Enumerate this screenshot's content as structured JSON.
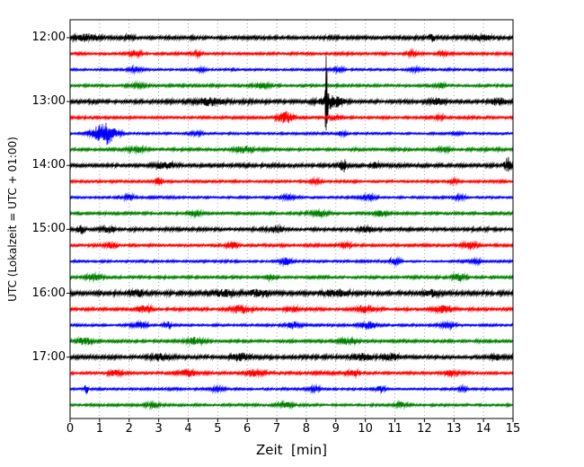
{
  "chart_data": {
    "type": "line",
    "subtype": "seismogram-helicorder-dayplot",
    "title": "",
    "xlabel": "Zeit  [min]",
    "ylabel": "UTC (Lokalzeit = UTC + 01:00)",
    "xlim": [
      0,
      15
    ],
    "minutes_per_line": 15,
    "grid": "vertical-dotted",
    "legend": "none",
    "x_tick_labels": [
      "0",
      "1",
      "2",
      "3",
      "4",
      "5",
      "6",
      "7",
      "8",
      "9",
      "10",
      "11",
      "12",
      "13",
      "14",
      "15"
    ],
    "y_tick_labels": [
      "12:00",
      "13:00",
      "14:00",
      "15:00",
      "16:00",
      "17:00"
    ],
    "trace_color_cycle": [
      "#000000",
      "#ff0000",
      "#0000ff",
      "#008000"
    ],
    "notable_event": {
      "row_utc": "13:00",
      "t_min": 8.7,
      "description": "large amplitude spike extending across neighbouring traces"
    },
    "rows": [
      {
        "utc": "12:00",
        "label": "12:00",
        "color": "#000000",
        "noise": 1.8,
        "events": [
          {
            "t": 0.55,
            "w": 0.35,
            "a": 3
          },
          {
            "t": 2.0,
            "w": 0.2,
            "a": 2
          },
          {
            "t": 12.25,
            "w": 0.08,
            "a": 4
          },
          {
            "t": 13.9,
            "w": 0.3,
            "a": 2.5
          }
        ]
      },
      {
        "utc": "12:15",
        "label": "",
        "color": "#ff0000",
        "noise": 1.4,
        "events": [
          {
            "t": 2.2,
            "w": 0.25,
            "a": 2.5
          },
          {
            "t": 4.3,
            "w": 0.15,
            "a": 2
          },
          {
            "t": 11.6,
            "w": 0.2,
            "a": 2.5
          },
          {
            "t": 12.6,
            "w": 0.15,
            "a": 2
          }
        ]
      },
      {
        "utc": "12:30",
        "label": "",
        "color": "#0000ff",
        "noise": 1.2,
        "events": [
          {
            "t": 2.2,
            "w": 0.2,
            "a": 2.5
          },
          {
            "t": 4.5,
            "w": 0.15,
            "a": 2
          },
          {
            "t": 9.1,
            "w": 0.2,
            "a": 2
          },
          {
            "t": 11.7,
            "w": 0.15,
            "a": 2
          }
        ]
      },
      {
        "utc": "12:45",
        "label": "",
        "color": "#008000",
        "noise": 1.4,
        "events": [
          {
            "t": 2.3,
            "w": 0.2,
            "a": 2
          },
          {
            "t": 6.5,
            "w": 0.3,
            "a": 2
          },
          {
            "t": 12.6,
            "w": 0.2,
            "a": 2
          }
        ]
      },
      {
        "utc": "13:00",
        "label": "13:00",
        "color": "#000000",
        "noise": 1.9,
        "events": [
          {
            "t": 4.8,
            "w": 0.4,
            "a": 3.5
          },
          {
            "t": 8.68,
            "w": 0.045,
            "a": 58
          },
          {
            "t": 8.85,
            "w": 0.35,
            "a": 7
          },
          {
            "t": 12.4,
            "w": 0.3,
            "a": 2.5
          },
          {
            "t": 14.5,
            "w": 0.25,
            "a": 3
          }
        ]
      },
      {
        "utc": "13:15",
        "label": "",
        "color": "#ff0000",
        "noise": 1.4,
        "events": [
          {
            "t": 7.3,
            "w": 0.28,
            "a": 6
          },
          {
            "t": 9.0,
            "w": 0.2,
            "a": 2
          },
          {
            "t": 12.5,
            "w": 0.15,
            "a": 2.5
          }
        ]
      },
      {
        "utc": "13:30",
        "label": "",
        "color": "#0000ff",
        "noise": 1.2,
        "events": [
          {
            "t": 1.15,
            "w": 0.38,
            "a": 13
          },
          {
            "t": 4.3,
            "w": 0.2,
            "a": 2
          },
          {
            "t": 9.2,
            "w": 0.15,
            "a": 2
          }
        ]
      },
      {
        "utc": "13:45",
        "label": "",
        "color": "#008000",
        "noise": 1.5,
        "events": [
          {
            "t": 2.3,
            "w": 0.25,
            "a": 2.5
          },
          {
            "t": 5.9,
            "w": 0.3,
            "a": 3
          },
          {
            "t": 12.7,
            "w": 0.2,
            "a": 2
          }
        ]
      },
      {
        "utc": "14:00",
        "label": "14:00",
        "color": "#000000",
        "noise": 1.8,
        "events": [
          {
            "t": 3.2,
            "w": 0.3,
            "a": 2.5
          },
          {
            "t": 9.25,
            "w": 0.12,
            "a": 7
          },
          {
            "t": 10.3,
            "w": 0.2,
            "a": 2.5
          },
          {
            "t": 14.82,
            "w": 0.1,
            "a": 9
          }
        ]
      },
      {
        "utc": "14:15",
        "label": "",
        "color": "#ff0000",
        "noise": 1.3,
        "events": [
          {
            "t": 3.0,
            "w": 0.1,
            "a": 6
          },
          {
            "t": 8.3,
            "w": 0.2,
            "a": 2
          },
          {
            "t": 13.0,
            "w": 0.2,
            "a": 2
          }
        ]
      },
      {
        "utc": "14:30",
        "label": "",
        "color": "#0000ff",
        "noise": 1.2,
        "events": [
          {
            "t": 2.0,
            "w": 0.2,
            "a": 2
          },
          {
            "t": 7.4,
            "w": 0.2,
            "a": 2.5
          },
          {
            "t": 10.1,
            "w": 0.25,
            "a": 2.5
          },
          {
            "t": 13.2,
            "w": 0.2,
            "a": 2
          }
        ]
      },
      {
        "utc": "14:45",
        "label": "",
        "color": "#008000",
        "noise": 1.4,
        "events": [
          {
            "t": 4.2,
            "w": 0.25,
            "a": 2
          },
          {
            "t": 8.4,
            "w": 0.3,
            "a": 2.5
          },
          {
            "t": 10.5,
            "w": 0.2,
            "a": 2.5
          }
        ]
      },
      {
        "utc": "15:00",
        "label": "15:00",
        "color": "#000000",
        "noise": 1.8,
        "events": [
          {
            "t": 0.35,
            "w": 0.1,
            "a": 3.5
          },
          {
            "t": 1.3,
            "w": 0.2,
            "a": 2.5
          },
          {
            "t": 7.0,
            "w": 0.3,
            "a": 2.5
          },
          {
            "t": 10.0,
            "w": 0.25,
            "a": 2.5
          }
        ]
      },
      {
        "utc": "15:15",
        "label": "",
        "color": "#ff0000",
        "noise": 1.4,
        "events": [
          {
            "t": 1.4,
            "w": 0.15,
            "a": 3
          },
          {
            "t": 5.5,
            "w": 0.2,
            "a": 2.5
          },
          {
            "t": 9.3,
            "w": 0.2,
            "a": 2.5
          },
          {
            "t": 13.5,
            "w": 0.25,
            "a": 3
          }
        ]
      },
      {
        "utc": "15:30",
        "label": "",
        "color": "#0000ff",
        "noise": 1.2,
        "events": [
          {
            "t": 7.3,
            "w": 0.2,
            "a": 3
          },
          {
            "t": 11.0,
            "w": 0.2,
            "a": 2.5
          },
          {
            "t": 13.8,
            "w": 0.2,
            "a": 2
          }
        ]
      },
      {
        "utc": "15:45",
        "label": "",
        "color": "#008000",
        "noise": 1.4,
        "events": [
          {
            "t": 0.8,
            "w": 0.25,
            "a": 3
          },
          {
            "t": 6.8,
            "w": 0.2,
            "a": 2
          },
          {
            "t": 13.2,
            "w": 0.25,
            "a": 3
          }
        ]
      },
      {
        "utc": "16:00",
        "label": "16:00",
        "color": "#000000",
        "noise": 2.2,
        "events": [
          {
            "t": 2.3,
            "w": 0.3,
            "a": 3
          },
          {
            "t": 5.2,
            "w": 0.3,
            "a": 3
          },
          {
            "t": 6.4,
            "w": 0.3,
            "a": 3
          },
          {
            "t": 9.0,
            "w": 0.4,
            "a": 2.5
          },
          {
            "t": 12.2,
            "w": 0.3,
            "a": 2.5
          }
        ]
      },
      {
        "utc": "16:15",
        "label": "",
        "color": "#ff0000",
        "noise": 1.5,
        "events": [
          {
            "t": 2.5,
            "w": 0.25,
            "a": 3
          },
          {
            "t": 5.8,
            "w": 0.3,
            "a": 4
          },
          {
            "t": 7.5,
            "w": 0.25,
            "a": 3
          },
          {
            "t": 10.0,
            "w": 0.3,
            "a": 3.5
          },
          {
            "t": 12.7,
            "w": 0.3,
            "a": 3.5
          }
        ]
      },
      {
        "utc": "16:30",
        "label": "",
        "color": "#0000ff",
        "noise": 1.3,
        "events": [
          {
            "t": 2.4,
            "w": 0.25,
            "a": 3
          },
          {
            "t": 3.3,
            "w": 0.15,
            "a": 3
          },
          {
            "t": 7.6,
            "w": 0.25,
            "a": 2.5
          },
          {
            "t": 10.1,
            "w": 0.3,
            "a": 3
          },
          {
            "t": 12.8,
            "w": 0.25,
            "a": 2.5
          }
        ]
      },
      {
        "utc": "16:45",
        "label": "",
        "color": "#008000",
        "noise": 1.5,
        "events": [
          {
            "t": 0.5,
            "w": 0.3,
            "a": 3
          },
          {
            "t": 4.2,
            "w": 0.3,
            "a": 3
          },
          {
            "t": 9.4,
            "w": 0.3,
            "a": 2.5
          }
        ]
      },
      {
        "utc": "17:00",
        "label": "17:00",
        "color": "#000000",
        "noise": 1.9,
        "events": [
          {
            "t": 3.0,
            "w": 0.3,
            "a": 2.5
          },
          {
            "t": 5.8,
            "w": 0.3,
            "a": 3
          },
          {
            "t": 9.9,
            "w": 0.3,
            "a": 3.5
          },
          {
            "t": 10.9,
            "w": 0.25,
            "a": 3
          },
          {
            "t": 14.4,
            "w": 0.2,
            "a": 2.5
          }
        ]
      },
      {
        "utc": "17:15",
        "label": "",
        "color": "#ff0000",
        "noise": 1.5,
        "events": [
          {
            "t": 1.5,
            "w": 0.2,
            "a": 2.5
          },
          {
            "t": 4.0,
            "w": 0.3,
            "a": 3
          },
          {
            "t": 6.2,
            "w": 0.25,
            "a": 2.5
          },
          {
            "t": 9.6,
            "w": 0.25,
            "a": 2.5
          },
          {
            "t": 12.9,
            "w": 0.2,
            "a": 2.5
          }
        ]
      },
      {
        "utc": "17:30",
        "label": "",
        "color": "#0000ff",
        "noise": 1.2,
        "events": [
          {
            "t": 0.55,
            "w": 0.05,
            "a": 5
          },
          {
            "t": 5.0,
            "w": 0.2,
            "a": 2
          },
          {
            "t": 8.3,
            "w": 0.2,
            "a": 2.5
          },
          {
            "t": 10.5,
            "w": 0.15,
            "a": 2.5
          },
          {
            "t": 13.3,
            "w": 0.15,
            "a": 2
          }
        ]
      },
      {
        "utc": "17:45",
        "label": "",
        "color": "#008000",
        "noise": 1.4,
        "events": [
          {
            "t": 2.8,
            "w": 0.25,
            "a": 2
          },
          {
            "t": 7.3,
            "w": 0.25,
            "a": 2.5
          },
          {
            "t": 11.2,
            "w": 0.2,
            "a": 2.5
          }
        ]
      }
    ]
  }
}
